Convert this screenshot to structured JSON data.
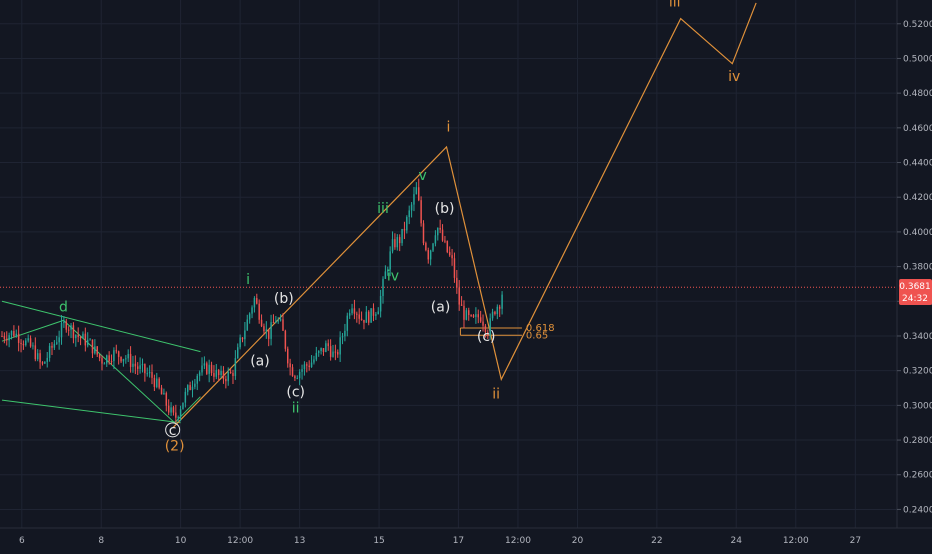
{
  "chart_data": {
    "type": "candlestick",
    "colors": {
      "background": "#131722",
      "up": "#26a69a",
      "down": "#ef5350",
      "grid": "#1f2433",
      "axis_text": "#b2b5be",
      "orange": "#e0913a",
      "green": "#3ec46d",
      "teal": "#4fd1c5",
      "price_line": "#ef5350",
      "fib": "#e0913a"
    },
    "y_axis": {
      "scale": "linear",
      "range": [
        0.2293,
        0.5337
      ],
      "ticks": [
        "0.5200",
        "0.5000",
        "0.4800",
        "0.4600",
        "0.4400",
        "0.4200",
        "0.4000",
        "0.3800",
        "0.3600",
        "0.3400",
        "0.3200",
        "0.3000",
        "0.2800",
        "0.2600",
        "0.2400"
      ]
    },
    "x_axis": {
      "unit": "days",
      "range": [
        5.45,
        28.05
      ],
      "ticks": [
        {
          "label": "6",
          "t": 6
        },
        {
          "label": "8",
          "t": 8
        },
        {
          "label": "10",
          "t": 10
        },
        {
          "label": "12:00",
          "t": 11.5
        },
        {
          "label": "13",
          "t": 13
        },
        {
          "label": "15",
          "t": 15
        },
        {
          "label": "17",
          "t": 17
        },
        {
          "label": "12:00",
          "t": 18.5
        },
        {
          "label": "20",
          "t": 20
        },
        {
          "label": "22",
          "t": 22
        },
        {
          "label": "24",
          "t": 24
        },
        {
          "label": "12:00",
          "t": 25.5
        },
        {
          "label": "27",
          "t": 27
        }
      ]
    },
    "current_price": {
      "value": 0.3681,
      "label": "0.3681",
      "countdown": "24:32"
    },
    "price_path": [
      [
        5.5,
        0.34
      ],
      [
        5.8,
        0.342
      ],
      [
        6.0,
        0.338
      ],
      [
        6.3,
        0.332
      ],
      [
        6.5,
        0.322
      ],
      [
        6.8,
        0.335
      ],
      [
        7.1,
        0.348
      ],
      [
        7.4,
        0.34
      ],
      [
        7.7,
        0.336
      ],
      [
        8.0,
        0.326
      ],
      [
        8.3,
        0.33
      ],
      [
        8.6,
        0.328
      ],
      [
        8.9,
        0.322
      ],
      [
        9.3,
        0.316
      ],
      [
        9.7,
        0.298
      ],
      [
        9.85,
        0.292
      ],
      [
        10.1,
        0.305
      ],
      [
        10.4,
        0.318
      ],
      [
        10.7,
        0.322
      ],
      [
        11.0,
        0.316
      ],
      [
        11.3,
        0.318
      ],
      [
        11.5,
        0.336
      ],
      [
        11.7,
        0.35
      ],
      [
        11.85,
        0.362
      ],
      [
        12.0,
        0.352
      ],
      [
        12.2,
        0.34
      ],
      [
        12.4,
        0.35
      ],
      [
        12.55,
        0.345
      ],
      [
        12.75,
        0.322
      ],
      [
        12.9,
        0.318
      ],
      [
        13.1,
        0.322
      ],
      [
        13.3,
        0.325
      ],
      [
        13.5,
        0.33
      ],
      [
        13.7,
        0.335
      ],
      [
        13.9,
        0.327
      ],
      [
        14.1,
        0.342
      ],
      [
        14.3,
        0.36
      ],
      [
        14.55,
        0.35
      ],
      [
        14.8,
        0.352
      ],
      [
        15.0,
        0.358
      ],
      [
        15.15,
        0.375
      ],
      [
        15.35,
        0.393
      ],
      [
        15.55,
        0.396
      ],
      [
        15.75,
        0.41
      ],
      [
        15.95,
        0.425
      ],
      [
        16.1,
        0.398
      ],
      [
        16.25,
        0.386
      ],
      [
        16.45,
        0.404
      ],
      [
        16.65,
        0.392
      ],
      [
        16.85,
        0.382
      ],
      [
        17.0,
        0.36
      ],
      [
        17.15,
        0.352
      ],
      [
        17.35,
        0.348
      ],
      [
        17.55,
        0.352
      ],
      [
        17.75,
        0.343
      ],
      [
        17.9,
        0.355
      ],
      [
        18.05,
        0.36
      ],
      [
        18.15,
        0.37
      ]
    ],
    "orange_projection": [
      [
        9.8,
        0.287
      ],
      [
        16.7,
        0.449
      ],
      [
        18.08,
        0.315
      ],
      [
        22.6,
        0.523
      ],
      [
        23.9,
        0.497
      ],
      [
        24.5,
        0.532
      ]
    ],
    "green_zigzag": [
      [
        5.5,
        0.337
      ],
      [
        7.05,
        0.349
      ],
      [
        9.85,
        0.29
      ],
      [
        10.5,
        0.305
      ]
    ],
    "green_lines": [
      [
        [
          5.5,
          0.36
        ],
        [
          10.5,
          0.331
        ]
      ],
      [
        [
          5.5,
          0.303
        ],
        [
          10.0,
          0.29
        ]
      ]
    ],
    "fib_levels": [
      {
        "label": "0.618",
        "value": 0.3446,
        "t0": 17.05,
        "t1": 18.6
      },
      {
        "label": "0.65",
        "value": 0.3404,
        "t0": 17.05,
        "t1": 18.6
      }
    ],
    "wave_labels": [
      {
        "text": "d",
        "t": 7.05,
        "v": 0.354,
        "color": "green"
      },
      {
        "text": "c",
        "t": 9.8,
        "v": 0.283,
        "color": "white"
      },
      {
        "text": "(2)",
        "t": 9.85,
        "v": 0.274,
        "color": "orange"
      },
      {
        "text": "i",
        "t": 11.7,
        "v": 0.37,
        "color": "green"
      },
      {
        "text": "(b)",
        "t": 12.6,
        "v": 0.359,
        "color": "white"
      },
      {
        "text": "(a)",
        "t": 12.0,
        "v": 0.323,
        "color": "white"
      },
      {
        "text": "(c)",
        "t": 12.9,
        "v": 0.305,
        "color": "white"
      },
      {
        "text": "ii",
        "t": 12.9,
        "v": 0.296,
        "color": "green"
      },
      {
        "text": "iii",
        "t": 15.1,
        "v": 0.411,
        "color": "green"
      },
      {
        "text": "iv",
        "t": 15.35,
        "v": 0.372,
        "color": "green"
      },
      {
        "text": "v",
        "t": 16.1,
        "v": 0.43,
        "color": "green"
      },
      {
        "text": "i",
        "t": 16.75,
        "v": 0.458,
        "color": "orange"
      },
      {
        "text": "(b)",
        "t": 16.65,
        "v": 0.411,
        "color": "white"
      },
      {
        "text": "(a)",
        "t": 16.55,
        "v": 0.354,
        "color": "white"
      },
      {
        "text": "(c)",
        "t": 17.7,
        "v": 0.337,
        "color": "white"
      },
      {
        "text": "ii",
        "t": 17.95,
        "v": 0.304,
        "color": "orange"
      },
      {
        "text": "iii",
        "t": 22.45,
        "v": 0.53,
        "color": "orange"
      },
      {
        "text": "iv",
        "t": 23.95,
        "v": 0.487,
        "color": "orange"
      }
    ]
  }
}
